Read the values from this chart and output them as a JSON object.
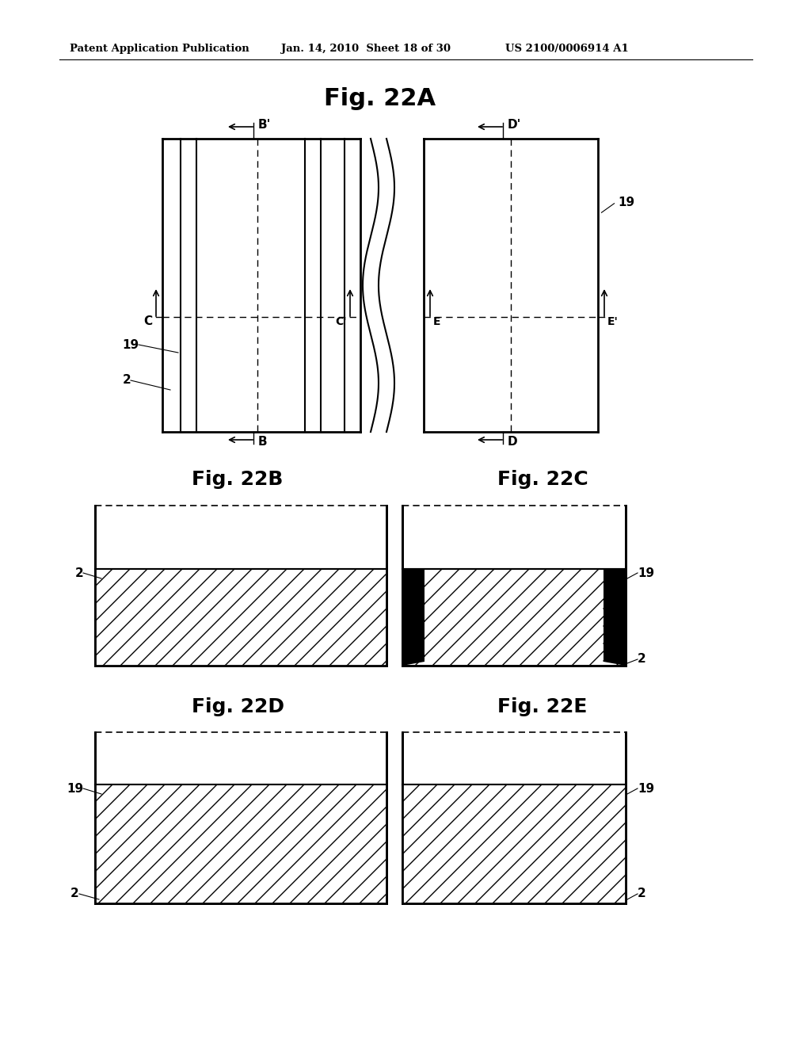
{
  "bg_color": "#ffffff",
  "header_text": "Patent Application Publication",
  "header_date": "Jan. 14, 2010  Sheet 18 of 30",
  "header_patent": "US 2100/0006914 A1",
  "fig_title_22A": "Fig. 22A",
  "fig_title_22B": "Fig. 22B",
  "fig_title_22C": "Fig. 22C",
  "fig_title_22D": "Fig. 22D",
  "fig_title_22E": "Fig. 22E"
}
